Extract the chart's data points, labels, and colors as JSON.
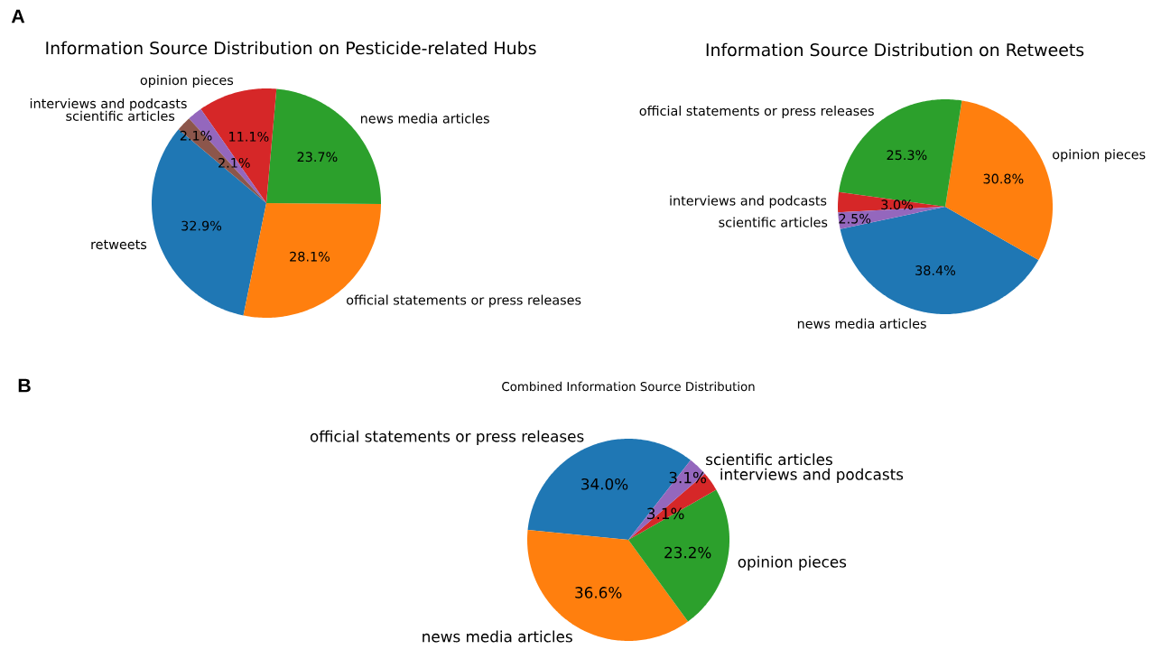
{
  "chart_data": [
    {
      "type": "pie",
      "title": "Information Source Distribution on Pesticide-related Hubs",
      "categories": [
        "retweets",
        "official statements or press releases",
        "news media articles",
        "opinion pieces",
        "interviews and podcasts",
        "scientific articles"
      ],
      "values": [
        32.9,
        28.1,
        23.7,
        11.1,
        2.1,
        2.1
      ],
      "value_labels": [
        "32.9%",
        "28.1%",
        "23.7%",
        "11.1%",
        "2.1%",
        "2.1%"
      ],
      "colors": [
        "#1f77b4",
        "#ff7f0e",
        "#2ca02c",
        "#d62728",
        "#9467bd",
        "#8c564b"
      ],
      "annotations": [
        "A"
      ]
    },
    {
      "type": "pie",
      "title": "Information Source Distribution on Retweets",
      "categories": [
        "news media articles",
        "opinion pieces",
        "official statements or press releases",
        "interviews and podcasts",
        "scientific articles"
      ],
      "values": [
        38.4,
        30.8,
        25.3,
        3.0,
        2.5
      ],
      "value_labels": [
        "38.4%",
        "30.8%",
        "25.3%",
        "3.0%",
        "2.5%"
      ],
      "colors": [
        "#1f77b4",
        "#ff7f0e",
        "#2ca02c",
        "#d62728",
        "#9467bd"
      ]
    },
    {
      "type": "pie",
      "title": "Combined Information Source Distribution",
      "categories": [
        "official statements or press releases",
        "news media articles",
        "opinion pieces",
        "interviews and podcasts",
        "scientific articles"
      ],
      "values": [
        34.0,
        36.6,
        23.2,
        3.1,
        3.1
      ],
      "value_labels": [
        "34.0%",
        "36.6%",
        "23.2%",
        "3.1%",
        "3.1%"
      ],
      "colors": [
        "#1f77b4",
        "#ff7f0e",
        "#2ca02c",
        "#d62728",
        "#9467bd"
      ],
      "annotations": [
        "B"
      ]
    }
  ]
}
